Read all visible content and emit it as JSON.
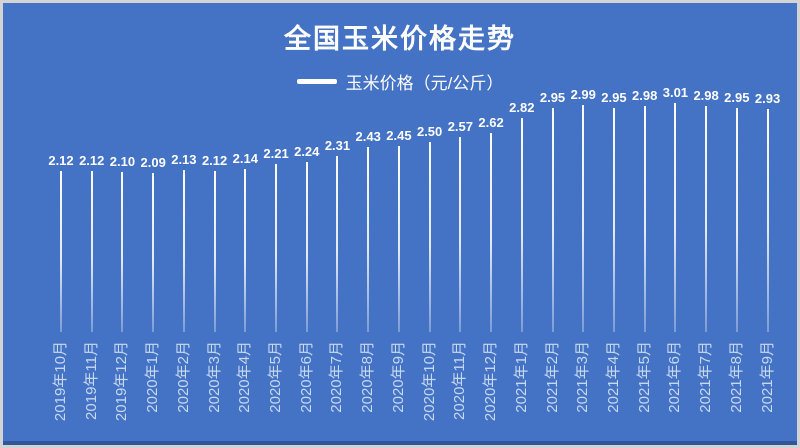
{
  "title": "全国玉米价格走势",
  "legend": {
    "label": "玉米价格（元/公斤）"
  },
  "colors": {
    "background": "#4472C4",
    "bar": "#FFFFFF",
    "title_text": "#FFFFFF",
    "value_label_text": "#FFFFFF",
    "axis_label_text": "#C6D9F1",
    "frame_border": "#D3D3D3"
  },
  "chart_data": {
    "type": "bar",
    "title": "全国玉米价格走势",
    "series_name": "玉米价格",
    "unit": "元/公斤",
    "legend_entries": [
      "玉米价格（元/公斤）"
    ],
    "legend_position": "top-center",
    "categories": [
      "2019年10月",
      "2019年11月",
      "2019年12月",
      "2020年1月",
      "2020年2月",
      "2020年3月",
      "2020年4月",
      "2020年5月",
      "2020年6月",
      "2020年7月",
      "2020年8月",
      "2020年9月",
      "2020年10月",
      "2020年11月",
      "2020年12月",
      "2021年1月",
      "2021年2月",
      "2021年3月",
      "2021年4月",
      "2021年5月",
      "2021年6月",
      "2021年7月",
      "2021年8月",
      "2021年9月"
    ],
    "values": [
      2.12,
      2.12,
      2.1,
      2.09,
      2.13,
      2.12,
      2.14,
      2.21,
      2.24,
      2.31,
      2.43,
      2.45,
      2.5,
      2.57,
      2.62,
      2.82,
      2.95,
      2.99,
      2.95,
      2.98,
      3.01,
      2.98,
      2.95,
      2.93
    ],
    "ylim": [
      0,
      3.2
    ],
    "grid": false,
    "y_axis_shown": false,
    "value_labels_shown": true,
    "value_label_format": "0.00",
    "x_labels_rotation_deg": 90
  }
}
